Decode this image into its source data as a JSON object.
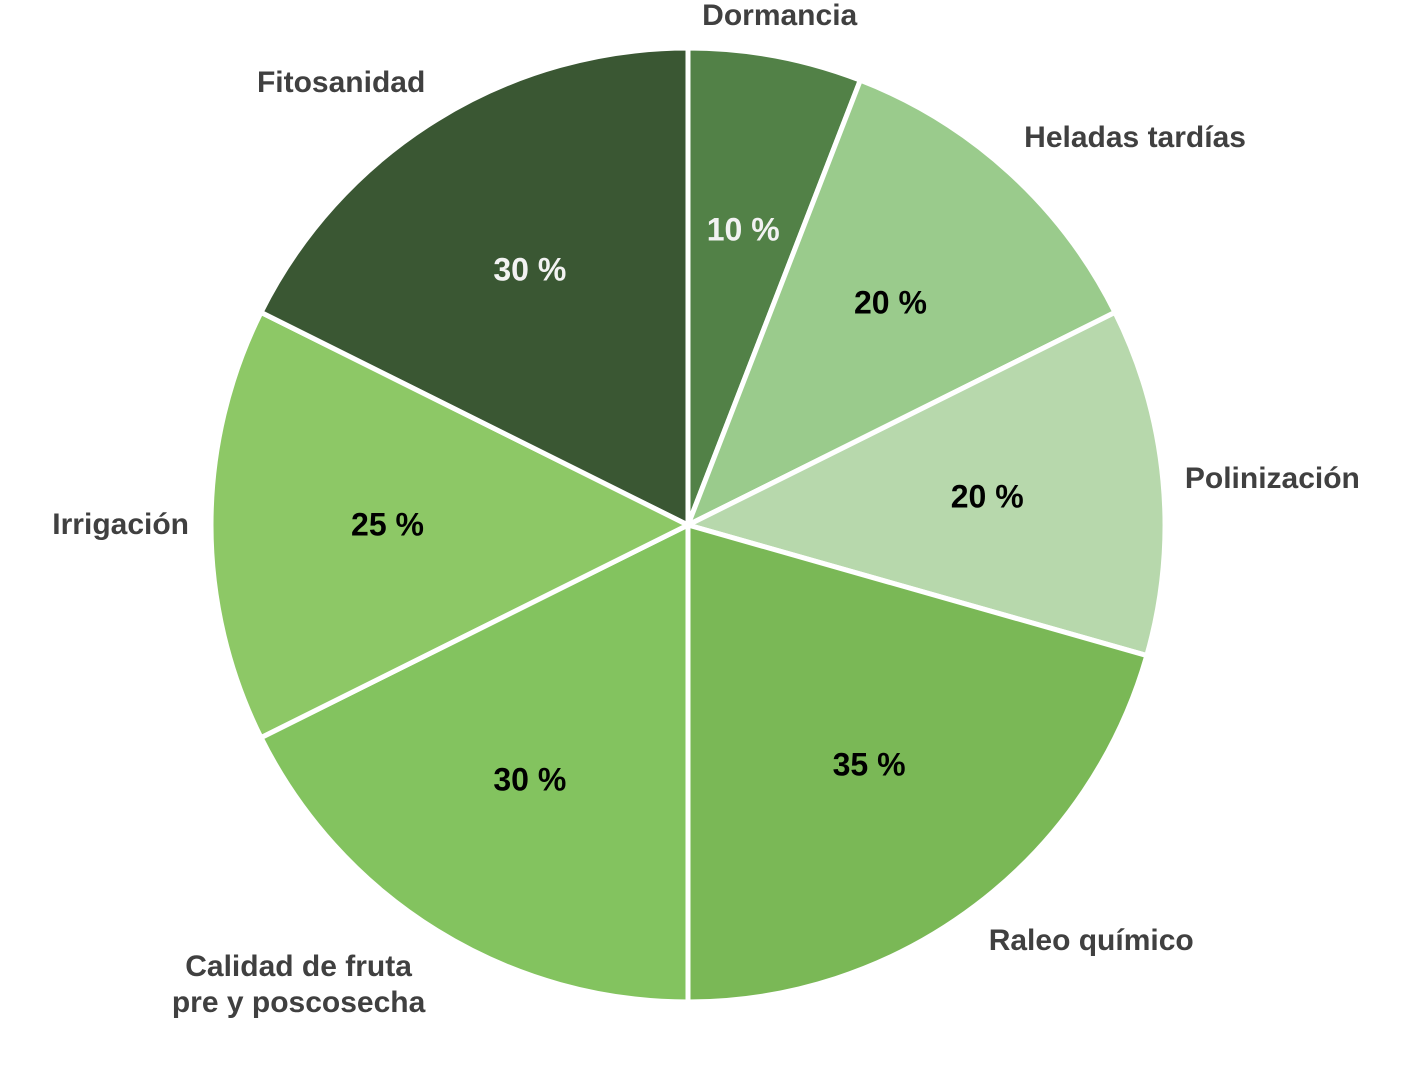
{
  "chart_data": {
    "type": "pie",
    "categories": [
      "Dormancia",
      "Heladas tardías",
      "Polinización",
      "Raleo químico",
      "Calidad de fruta\npre y poscosecha",
      "Irrigación",
      "Fitosanidad"
    ],
    "values": [
      10,
      20,
      20,
      35,
      30,
      25,
      30
    ],
    "value_labels": [
      "10 %",
      "20 %",
      "20 %",
      "35 %",
      "30 %",
      "25 %",
      "30 %"
    ],
    "colors": [
      "#528147",
      "#9acb8c",
      "#b7d8ac",
      "#7ab856",
      "#83c35f",
      "#8dc866",
      "#3a5733"
    ]
  }
}
